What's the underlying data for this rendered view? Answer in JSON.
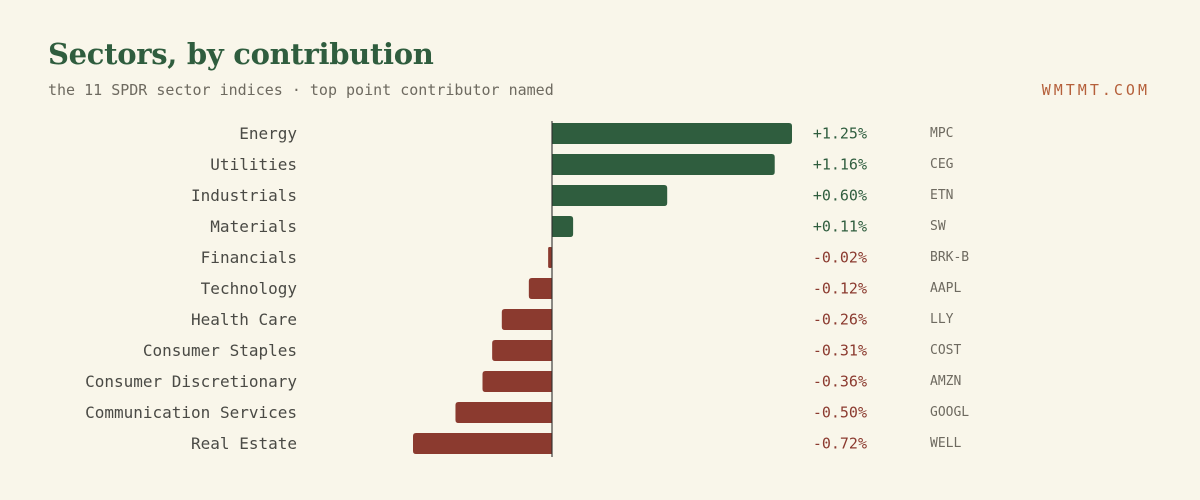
{
  "header": {
    "title": "Sectors, by contribution",
    "subtitle": "the 11 SPDR sector indices · top point contributor named",
    "brand": "WMTMT.COM"
  },
  "colors": {
    "positive": "#2f5d3e",
    "negative": "#8b3a2f",
    "background": "#f9f6ea",
    "axis": "#2f2f2f"
  },
  "chart_data": {
    "type": "bar",
    "orientation": "horizontal",
    "categories": [
      "Energy",
      "Utilities",
      "Industrials",
      "Materials",
      "Financials",
      "Technology",
      "Health Care",
      "Consumer Staples",
      "Consumer Discretionary",
      "Communication Services",
      "Real Estate"
    ],
    "values": [
      1.25,
      1.16,
      0.6,
      0.11,
      -0.02,
      -0.12,
      -0.26,
      -0.31,
      -0.36,
      -0.5,
      -0.72
    ],
    "value_labels": [
      "+1.25%",
      "+1.16%",
      "+0.60%",
      "+0.11%",
      "-0.02%",
      "-0.12%",
      "-0.26%",
      "-0.31%",
      "-0.36%",
      "-0.50%",
      "-0.72%"
    ],
    "top_contributors": [
      "MPC",
      "CEG",
      "ETN",
      "SW",
      "BRK-B",
      "AAPL",
      "LLY",
      "COST",
      "AMZN",
      "GOOGL",
      "WELL"
    ],
    "title": "Sectors, by contribution",
    "xlabel": "",
    "ylabel": "",
    "xlim": [
      -0.72,
      1.25
    ],
    "grid": false,
    "legend": "none"
  }
}
